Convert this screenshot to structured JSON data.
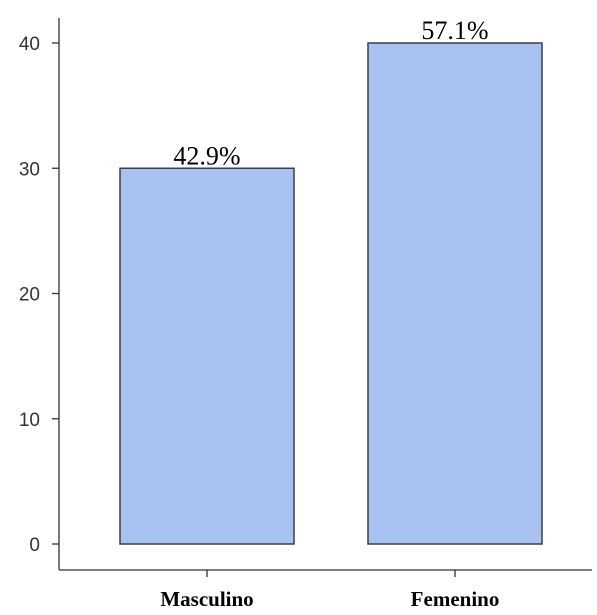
{
  "chart_data": {
    "type": "bar",
    "categories": [
      "Masculino",
      "Femenino"
    ],
    "values": [
      30,
      40
    ],
    "data_labels": [
      "42.9%",
      "57.1%"
    ],
    "ylim": [
      0,
      40
    ],
    "y_ticks": [
      0,
      10,
      20,
      30,
      40
    ],
    "y_tick_labels": [
      "0",
      "10",
      "20",
      "30",
      "40"
    ],
    "grid": false,
    "title": "",
    "xlabel": "",
    "ylabel": "",
    "colors": {
      "bar_fill": "#a7c2f0",
      "bar_stroke": "#3d3d4a",
      "axis": "#333333"
    }
  }
}
